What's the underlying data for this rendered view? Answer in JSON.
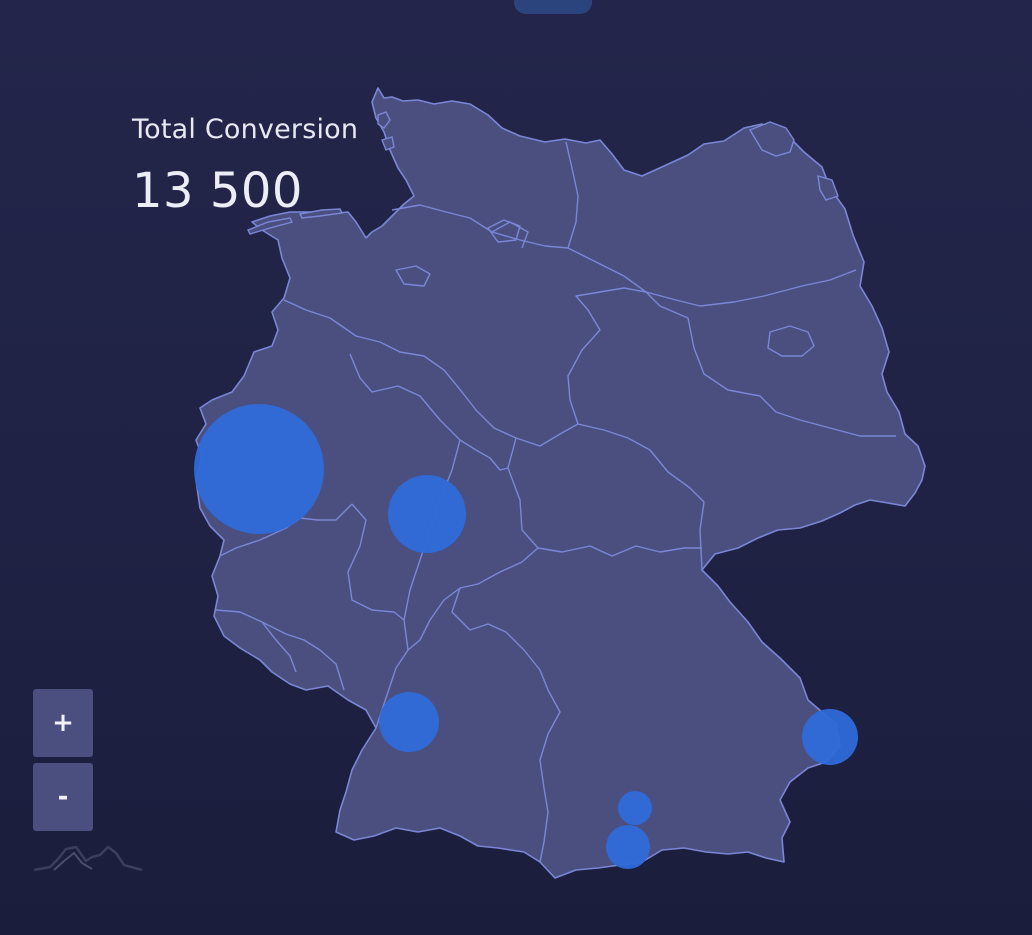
{
  "summary": {
    "label": "Total Conversion",
    "value": "13 500"
  },
  "controls": {
    "zoom_in_label": "+",
    "zoom_out_label": "-"
  },
  "map": {
    "country": "Germany",
    "region_fill": "#4a4f80",
    "border_color": "#7b87d6",
    "bubble_color": "#2f6ad9",
    "background_color": "#21244a"
  },
  "icons": {
    "logo": "mountain-logo-icon"
  }
}
